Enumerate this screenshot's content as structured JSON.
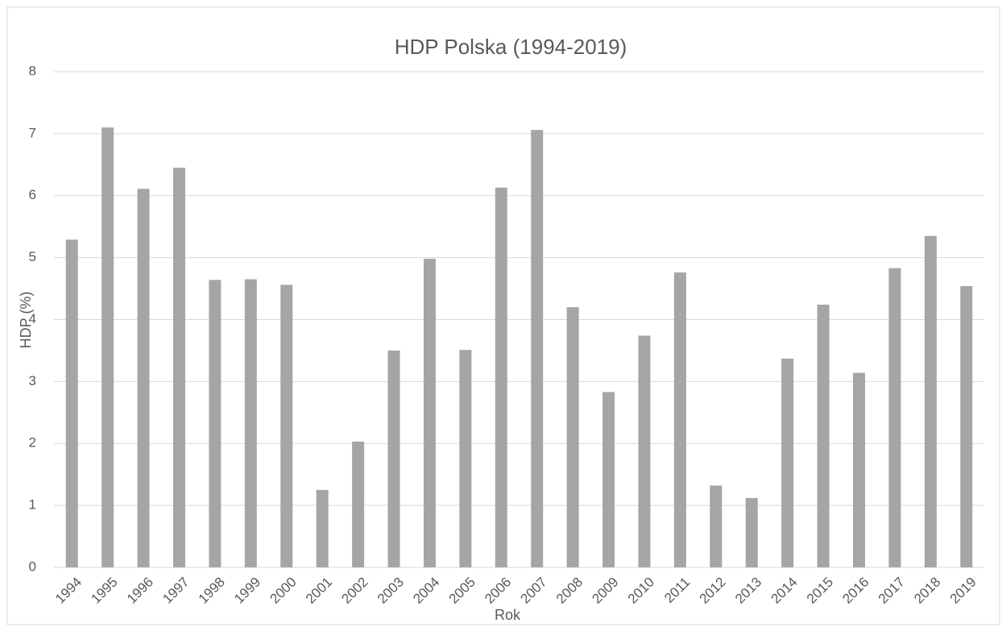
{
  "chart_data": {
    "type": "bar",
    "title": "HDP Polska (1994-2019)",
    "x_label": "Rok",
    "y_label": "HDP (%)",
    "categories": [
      "1994",
      "1995",
      "1996",
      "1997",
      "1998",
      "1999",
      "2000",
      "2001",
      "2002",
      "2003",
      "2004",
      "2005",
      "2006",
      "2007",
      "2008",
      "2009",
      "2010",
      "2011",
      "2012",
      "2013",
      "2014",
      "2015",
      "2016",
      "2017",
      "2018",
      "2019"
    ],
    "values": [
      5.29,
      7.1,
      6.11,
      6.45,
      4.64,
      4.65,
      4.56,
      1.25,
      2.03,
      3.5,
      4.98,
      3.51,
      6.13,
      7.06,
      4.2,
      2.83,
      3.74,
      4.76,
      1.32,
      1.12,
      3.37,
      4.24,
      3.14,
      4.83,
      5.35,
      4.54
    ],
    "color": "#a5a5a5",
    "ylim": [
      0,
      8
    ],
    "yticks": [
      0,
      1,
      2,
      3,
      4,
      5,
      6,
      7,
      8
    ],
    "grid": true
  }
}
